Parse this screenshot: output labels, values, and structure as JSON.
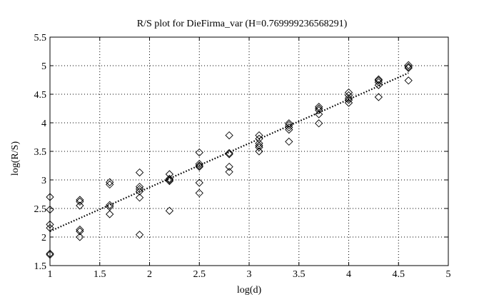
{
  "chart_data": {
    "type": "scatter",
    "title": "R/S plot for DieFirma_var (H=0.769999236568291)",
    "xlabel": "log(d)",
    "ylabel": "log(R/S)",
    "xlim": [
      1,
      5
    ],
    "ylim": [
      1.5,
      5.5
    ],
    "xticks": [
      "1",
      "1.5",
      "2",
      "2.5",
      "3",
      "3.5",
      "4",
      "4.5",
      "5"
    ],
    "yticks": [
      "1.5",
      "2",
      "2.5",
      "3",
      "3.5",
      "4",
      "4.5",
      "5",
      "5.5"
    ],
    "grid": true,
    "series": [
      {
        "marker": "diamond",
        "points": [
          [
            1.0,
            2.7
          ],
          [
            1.0,
            2.48
          ],
          [
            1.0,
            2.22
          ],
          [
            1.0,
            2.16
          ],
          [
            1.0,
            1.71
          ],
          [
            1.0,
            1.69
          ],
          [
            1.3,
            2.65
          ],
          [
            1.3,
            2.62
          ],
          [
            1.3,
            2.55
          ],
          [
            1.3,
            2.13
          ],
          [
            1.3,
            2.1
          ],
          [
            1.3,
            2.0
          ],
          [
            1.6,
            2.96
          ],
          [
            1.6,
            2.92
          ],
          [
            1.6,
            2.56
          ],
          [
            1.6,
            2.53
          ],
          [
            1.6,
            2.4
          ],
          [
            1.9,
            3.13
          ],
          [
            1.9,
            2.88
          ],
          [
            1.9,
            2.84
          ],
          [
            1.9,
            2.8
          ],
          [
            1.9,
            2.69
          ],
          [
            1.9,
            2.04
          ],
          [
            2.2,
            3.1
          ],
          [
            2.2,
            3.02
          ],
          [
            2.2,
            3.0
          ],
          [
            2.2,
            2.98
          ],
          [
            2.2,
            2.46
          ],
          [
            2.5,
            3.48
          ],
          [
            2.5,
            3.28
          ],
          [
            2.5,
            3.25
          ],
          [
            2.5,
            3.23
          ],
          [
            2.5,
            2.95
          ],
          [
            2.5,
            2.77
          ],
          [
            2.8,
            3.78
          ],
          [
            2.8,
            3.47
          ],
          [
            2.8,
            3.45
          ],
          [
            2.8,
            3.23
          ],
          [
            2.8,
            3.14
          ],
          [
            3.1,
            3.78
          ],
          [
            3.1,
            3.72
          ],
          [
            3.1,
            3.64
          ],
          [
            3.1,
            3.6
          ],
          [
            3.1,
            3.57
          ],
          [
            3.1,
            3.5
          ],
          [
            3.4,
            3.99
          ],
          [
            3.4,
            3.96
          ],
          [
            3.4,
            3.92
          ],
          [
            3.4,
            3.88
          ],
          [
            3.4,
            3.67
          ],
          [
            3.7,
            4.28
          ],
          [
            3.7,
            4.25
          ],
          [
            3.7,
            4.22
          ],
          [
            3.7,
            4.15
          ],
          [
            3.7,
            3.99
          ],
          [
            4.0,
            4.53
          ],
          [
            4.0,
            4.48
          ],
          [
            4.0,
            4.43
          ],
          [
            4.0,
            4.4
          ],
          [
            4.0,
            4.35
          ],
          [
            4.3,
            4.76
          ],
          [
            4.3,
            4.74
          ],
          [
            4.3,
            4.71
          ],
          [
            4.3,
            4.66
          ],
          [
            4.3,
            4.45
          ],
          [
            4.6,
            5.01
          ],
          [
            4.6,
            4.98
          ],
          [
            4.6,
            4.96
          ],
          [
            4.6,
            4.74
          ]
        ]
      },
      {
        "type": "line",
        "style": "dotted",
        "x": [
          1.0,
          4.6
        ],
        "y": [
          2.1,
          4.872
        ]
      }
    ]
  }
}
